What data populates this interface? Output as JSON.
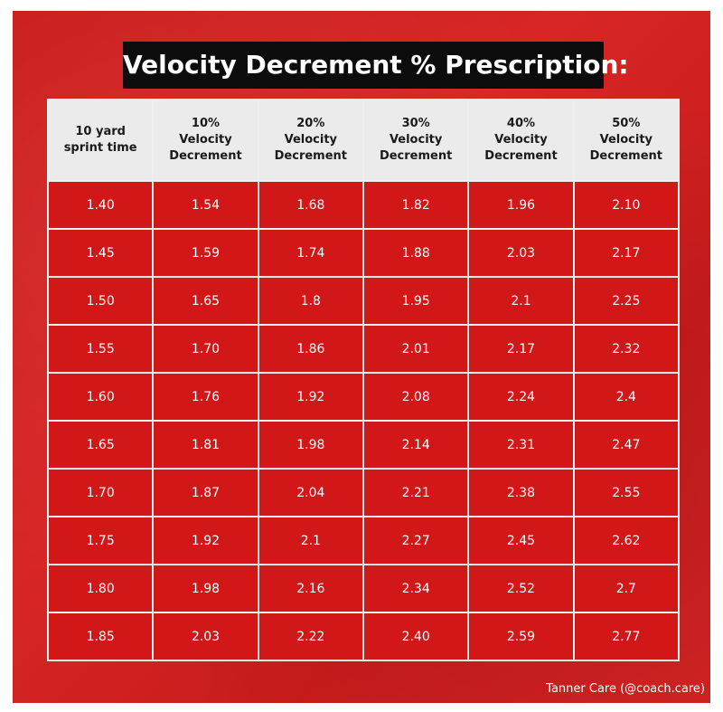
{
  "title": "Velocity Decrement % Prescription:",
  "table": {
    "headers": [
      [
        "10 yard",
        "sprint time"
      ],
      [
        "10%",
        "Velocity",
        "Decrement"
      ],
      [
        "20%",
        "Velocity",
        "Decrement"
      ],
      [
        "30%",
        "Velocity",
        "Decrement"
      ],
      [
        "40%",
        "Velocity",
        "Decrement"
      ],
      [
        "50%",
        "Velocity",
        "Decrement"
      ]
    ],
    "rows": [
      [
        "1.40",
        "1.54",
        "1.68",
        "1.82",
        "1.96",
        "2.10"
      ],
      [
        "1.45",
        "1.59",
        "1.74",
        "1.88",
        "2.03",
        "2.17"
      ],
      [
        "1.50",
        "1.65",
        "1.8",
        "1.95",
        "2.1",
        "2.25"
      ],
      [
        "1.55",
        "1.70",
        "1.86",
        "2.01",
        "2.17",
        "2.32"
      ],
      [
        "1.60",
        "1.76",
        "1.92",
        "2.08",
        "2.24",
        "2.4"
      ],
      [
        "1.65",
        "1.81",
        "1.98",
        "2.14",
        "2.31",
        "2.47"
      ],
      [
        "1.70",
        "1.87",
        "2.04",
        "2.21",
        "2.38",
        "2.55"
      ],
      [
        "1.75",
        "1.92",
        "2.1",
        "2.27",
        "2.45",
        "2.62"
      ],
      [
        "1.80",
        "1.98",
        "2.16",
        "2.34",
        "2.52",
        "2.7"
      ],
      [
        "1.85",
        "2.03",
        "2.22",
        "2.40",
        "2.59",
        "2.77"
      ]
    ]
  },
  "credit": "Tanner Care (@coach.care)",
  "colors": {
    "background_red": "#d61d1d",
    "header_gray": "#ebebeb",
    "title_bg": "#0c0c0c"
  }
}
